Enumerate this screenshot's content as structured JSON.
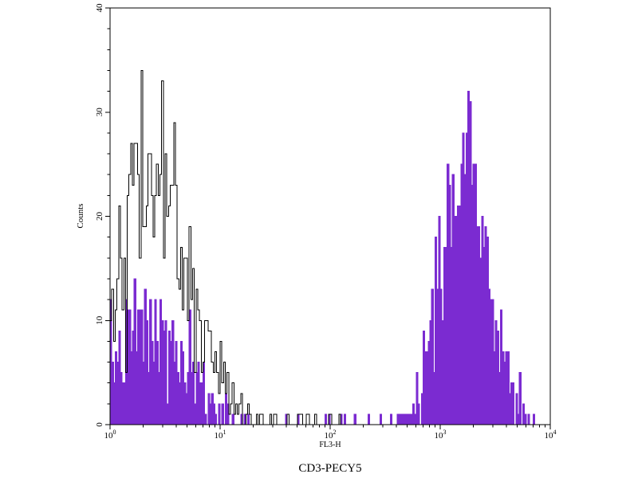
{
  "figure": {
    "background": "#ffffff",
    "frame_color": "#000000"
  },
  "chart_data": {
    "type": "histogram",
    "title": "CD3-PECY5",
    "xlabel": "FL3-H",
    "ylabel": "Counts",
    "x_scale": "log10",
    "x_tick_base": 10,
    "x_range_log10": [
      0,
      4
    ],
    "x_tick_exponents": [
      0,
      1,
      2,
      3,
      4
    ],
    "ylim": [
      0,
      40
    ],
    "y_major_ticks": [
      0,
      10,
      20,
      30,
      40
    ],
    "y_minor_step": 2,
    "bins": 256,
    "legend": "none",
    "grid": false,
    "series": [
      {
        "name": "cd3-pecy5-filled",
        "style": "filled",
        "color": "#7B2BD1",
        "peaks": [
          {
            "center_log10": 0.33,
            "sigma_log10": 0.34,
            "height": 9
          },
          {
            "center_log10": 3.22,
            "sigma_log10": 0.21,
            "height": 25
          }
        ],
        "tail": {
          "range_log10": [
            1.0,
            2.85
          ],
          "prob": 0.14,
          "max": 1
        },
        "peak_observed_counts": [
          12,
          29
        ],
        "noise_seed": 7
      },
      {
        "name": "open-black-control",
        "style": "open",
        "color": "#000000",
        "peaks": [
          {
            "center_log10": 0.38,
            "sigma_log10": 0.34,
            "height": 24
          }
        ],
        "tail": {
          "range_log10": [
            1.0,
            2.55
          ],
          "prob": 0.16,
          "max": 1
        },
        "peak_observed_counts": [
          29
        ],
        "noise_seed": 42
      }
    ]
  }
}
